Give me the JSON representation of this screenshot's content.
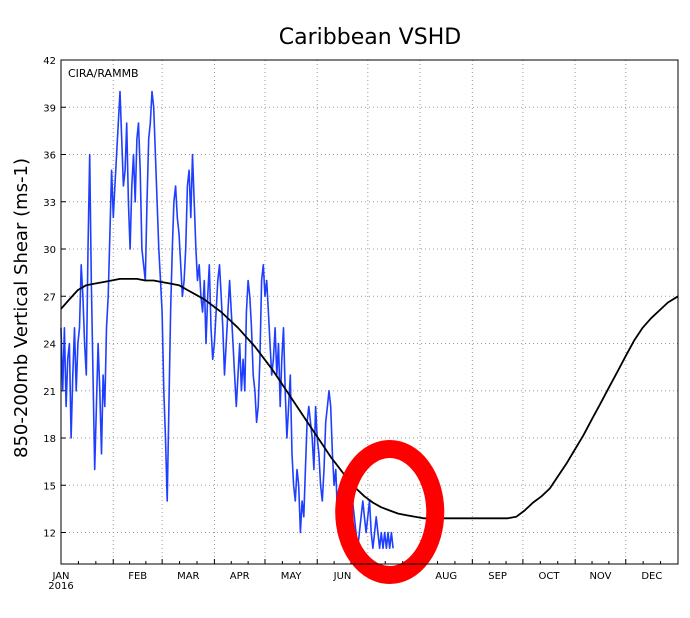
{
  "chart_data": {
    "type": "line",
    "title": "Caribbean VSHD",
    "ylabel": "850-200mb Vertical Shear (ms-1)",
    "credit": "CIRA/RAMMB",
    "xlabel": "",
    "year_label": "2016",
    "x_unit": "day of year 2016",
    "xlim": [
      0,
      366
    ],
    "ylim": [
      10,
      42
    ],
    "yticks": [
      12,
      15,
      18,
      21,
      24,
      27,
      30,
      33,
      36,
      39,
      42
    ],
    "xticks": [
      {
        "label": "JAN",
        "day": 0
      },
      {
        "label": "FEB",
        "day": 31
      },
      {
        "label": "MAR",
        "day": 60
      },
      {
        "label": "APR",
        "day": 91
      },
      {
        "label": "MAY",
        "day": 121
      },
      {
        "label": "JUN",
        "day": 152
      },
      {
        "label": "JUL",
        "day": 182
      },
      {
        "label": "AUG",
        "day": 213
      },
      {
        "label": "SEP",
        "day": 244
      },
      {
        "label": "OCT",
        "day": 274
      },
      {
        "label": "NOV",
        "day": 305
      },
      {
        "label": "DEC",
        "day": 335
      }
    ],
    "grid": true,
    "colors": {
      "daily": "#1f3fff",
      "climatology": "#000000",
      "highlight": "#ff0000"
    },
    "series": [
      {
        "key": "daily",
        "x": [
          0,
          1,
          2,
          3,
          4,
          5,
          6,
          7,
          8,
          9,
          10,
          11,
          12,
          13,
          14,
          15,
          16,
          17,
          18,
          19,
          20,
          21,
          22,
          23,
          24,
          25,
          26,
          27,
          28,
          29,
          30,
          31,
          32,
          33,
          34,
          35,
          36,
          37,
          38,
          39,
          40,
          41,
          42,
          43,
          44,
          45,
          46,
          47,
          48,
          49,
          50,
          51,
          52,
          53,
          54,
          55,
          56,
          57,
          58,
          59,
          60,
          61,
          62,
          63,
          64,
          65,
          66,
          67,
          68,
          69,
          70,
          71,
          72,
          73,
          74,
          75,
          76,
          77,
          78,
          79,
          80,
          81,
          82,
          83,
          84,
          85,
          86,
          87,
          88,
          89,
          90,
          91,
          92,
          93,
          94,
          95,
          96,
          97,
          98,
          99,
          100,
          101,
          102,
          103,
          104,
          105,
          106,
          107,
          108,
          109,
          110,
          111,
          112,
          113,
          114,
          115,
          116,
          117,
          118,
          119,
          120,
          121,
          122,
          123,
          124,
          125,
          126,
          127,
          128,
          129,
          130,
          131,
          132,
          133,
          134,
          135,
          136,
          137,
          138,
          139,
          140,
          141,
          142,
          143,
          144,
          145,
          146,
          147,
          148,
          149,
          150,
          151,
          152,
          153,
          154,
          155,
          156,
          157,
          158,
          159,
          160,
          161,
          162,
          163,
          164,
          165,
          166,
          167,
          168,
          169,
          170,
          171,
          172,
          173,
          174,
          175,
          176,
          177,
          178,
          179,
          180,
          181,
          182,
          183,
          184,
          185,
          186,
          187,
          188,
          189,
          190,
          191,
          192,
          193,
          194,
          195,
          196,
          197
        ],
        "y": [
          25,
          21,
          25,
          20,
          23,
          24,
          18,
          22,
          25,
          21,
          24,
          25,
          29,
          27,
          24,
          22,
          30,
          36,
          28,
          22,
          16,
          20,
          24,
          21,
          17,
          22,
          20,
          25,
          27,
          31,
          35,
          32,
          34,
          36,
          38,
          40,
          37,
          34,
          35,
          38,
          33,
          30,
          34,
          36,
          33,
          37,
          38,
          35,
          30,
          29,
          28,
          33,
          37,
          38,
          40,
          39,
          36,
          33,
          30,
          28,
          26,
          21,
          18,
          14,
          20,
          26,
          30,
          33,
          34,
          32,
          31,
          29,
          27,
          28,
          30,
          34,
          35,
          32,
          36,
          33,
          30,
          28,
          29,
          27,
          26,
          28,
          24,
          27,
          29,
          25,
          23,
          24,
          26,
          28,
          29,
          27,
          25,
          22,
          24,
          26,
          28,
          26,
          24,
          22,
          20,
          22,
          24,
          21,
          23,
          21,
          26,
          28,
          27,
          25,
          22,
          21,
          19,
          20,
          23,
          28,
          29,
          27,
          28,
          26,
          24,
          22,
          23,
          25,
          22,
          24,
          20,
          23,
          25,
          21,
          18,
          20,
          22,
          17,
          15,
          14,
          16,
          15,
          12,
          14,
          13,
          16,
          19,
          20,
          19,
          18,
          16,
          20,
          18,
          17,
          15,
          14,
          16,
          19,
          20,
          21,
          20,
          17,
          15,
          16,
          13,
          14,
          15,
          14,
          12,
          14,
          13,
          14,
          15,
          14,
          13,
          12,
          11,
          12,
          13,
          14,
          13,
          12,
          13,
          14,
          12,
          11,
          12,
          13,
          12,
          11,
          12,
          11,
          12,
          11,
          12,
          11,
          12,
          11
        ]
      },
      {
        "key": "climatology",
        "x": [
          0,
          5,
          10,
          15,
          20,
          25,
          30,
          35,
          40,
          45,
          50,
          55,
          60,
          65,
          70,
          75,
          80,
          85,
          90,
          95,
          100,
          105,
          110,
          115,
          120,
          125,
          130,
          135,
          140,
          145,
          150,
          155,
          160,
          165,
          170,
          175,
          180,
          185,
          190,
          195,
          200,
          205,
          210,
          215,
          220,
          225,
          230,
          235,
          240,
          245,
          250,
          255,
          260,
          265,
          270,
          275,
          280,
          285,
          290,
          295,
          300,
          305,
          310,
          315,
          320,
          325,
          330,
          335,
          340,
          345,
          350,
          355,
          360,
          366
        ],
        "y": [
          26.2,
          26.8,
          27.4,
          27.7,
          27.8,
          27.9,
          28.0,
          28.1,
          28.1,
          28.1,
          28.0,
          28.0,
          27.9,
          27.8,
          27.7,
          27.4,
          27.1,
          26.8,
          26.4,
          26.0,
          25.5,
          25.0,
          24.4,
          23.8,
          23.1,
          22.4,
          21.6,
          20.8,
          20.0,
          19.2,
          18.4,
          17.6,
          16.8,
          16.1,
          15.4,
          14.8,
          14.3,
          13.9,
          13.6,
          13.4,
          13.2,
          13.1,
          13.0,
          12.9,
          12.9,
          12.9,
          12.9,
          12.9,
          12.9,
          12.9,
          12.9,
          12.9,
          12.9,
          12.9,
          13.0,
          13.4,
          13.9,
          14.3,
          14.8,
          15.6,
          16.4,
          17.3,
          18.2,
          19.2,
          20.2,
          21.2,
          22.2,
          23.2,
          24.2,
          25.0,
          25.6,
          26.1,
          26.6,
          27.0
        ]
      }
    ],
    "highlight": {
      "shape": "circle",
      "center": [
        195,
        13.3
      ],
      "radius_days": 27,
      "radius_value": 4.0
    }
  }
}
